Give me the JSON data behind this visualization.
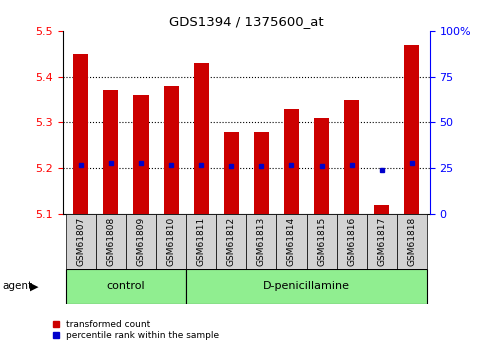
{
  "title": "GDS1394 / 1375600_at",
  "samples": [
    "GSM61807",
    "GSM61808",
    "GSM61809",
    "GSM61810",
    "GSM61811",
    "GSM61812",
    "GSM61813",
    "GSM61814",
    "GSM61815",
    "GSM61816",
    "GSM61817",
    "GSM61818"
  ],
  "transformed_count": [
    5.45,
    5.37,
    5.36,
    5.38,
    5.43,
    5.28,
    5.28,
    5.33,
    5.31,
    5.35,
    5.12,
    5.47
  ],
  "percentile_rank": [
    27,
    28,
    28,
    27,
    27,
    26,
    26,
    27,
    26,
    27,
    24,
    28
  ],
  "base_value": 5.1,
  "ylim_left": [
    5.1,
    5.5
  ],
  "ylim_right": [
    0,
    100
  ],
  "yticks_left": [
    5.1,
    5.2,
    5.3,
    5.4,
    5.5
  ],
  "yticks_right": [
    0,
    25,
    50,
    75,
    100
  ],
  "ytick_labels_right": [
    "0",
    "25",
    "50",
    "75",
    "100%"
  ],
  "bar_color": "#cc0000",
  "percentile_color": "#0000cc",
  "bar_width": 0.5,
  "plot_bg": "#ffffff",
  "tick_label_bg": "#d3d3d3",
  "group_bg": "#90ee90",
  "legend_items": [
    {
      "color": "#cc0000",
      "label": "transformed count"
    },
    {
      "color": "#0000cc",
      "label": "percentile rank within the sample"
    }
  ],
  "agent_label": "agent",
  "control_label": "control",
  "treatment_label": "D-penicillamine",
  "control_count": 4,
  "n_samples": 12
}
